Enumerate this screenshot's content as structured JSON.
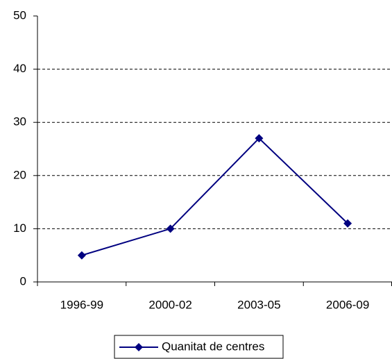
{
  "chart_data": {
    "type": "line",
    "categories": [
      "1996-99",
      "2000-02",
      "2003-05",
      "2006-09"
    ],
    "series": [
      {
        "name": "Quanitat de centres",
        "color": "#000080",
        "values": [
          5,
          10,
          27,
          11
        ]
      }
    ],
    "ylim": [
      0,
      50
    ],
    "yticks": [
      0,
      10,
      20,
      30,
      40,
      50
    ],
    "grid": true,
    "legend": "bottom"
  }
}
